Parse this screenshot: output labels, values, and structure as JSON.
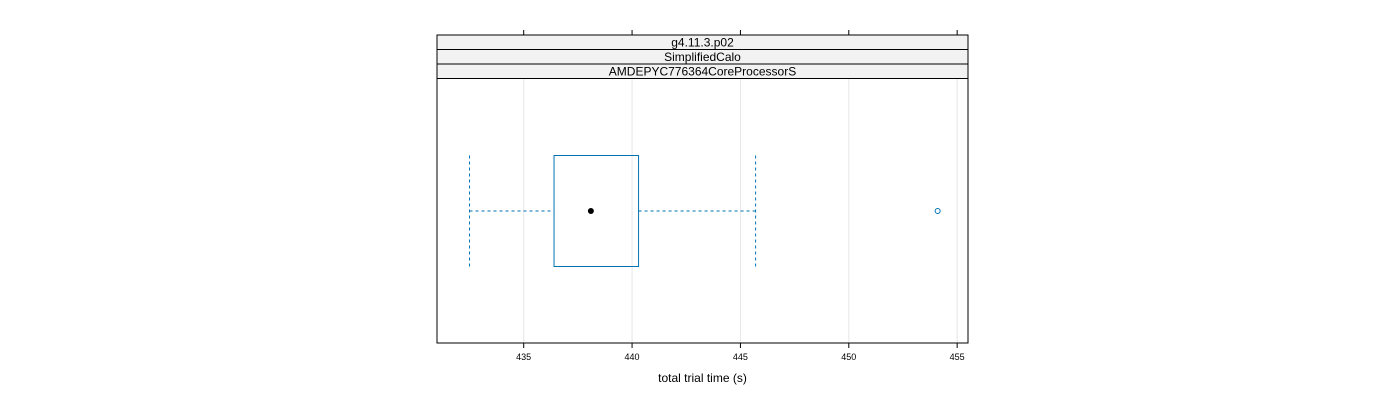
{
  "chart_data": {
    "type": "boxplot",
    "title": "",
    "xlabel": "total trial time (s)",
    "ylabel": "",
    "xlim": [
      431,
      455.5
    ],
    "xticks": [
      435,
      440,
      445,
      450,
      455
    ],
    "grid": true,
    "strips": [
      "g4.11.3.p02",
      "SimplifiedCalo",
      "AMDEPYC776364CoreProcessorS"
    ],
    "box": {
      "whisker_low": 432.5,
      "q1": 436.4,
      "median": 438.1,
      "q3": 440.3,
      "whisker_high": 445.7,
      "outliers": [
        454.1
      ]
    },
    "colors": {
      "box": "#0072b2",
      "whisker": "#0072b2",
      "median_dot": "#000000",
      "outlier": "#0072b2"
    }
  }
}
